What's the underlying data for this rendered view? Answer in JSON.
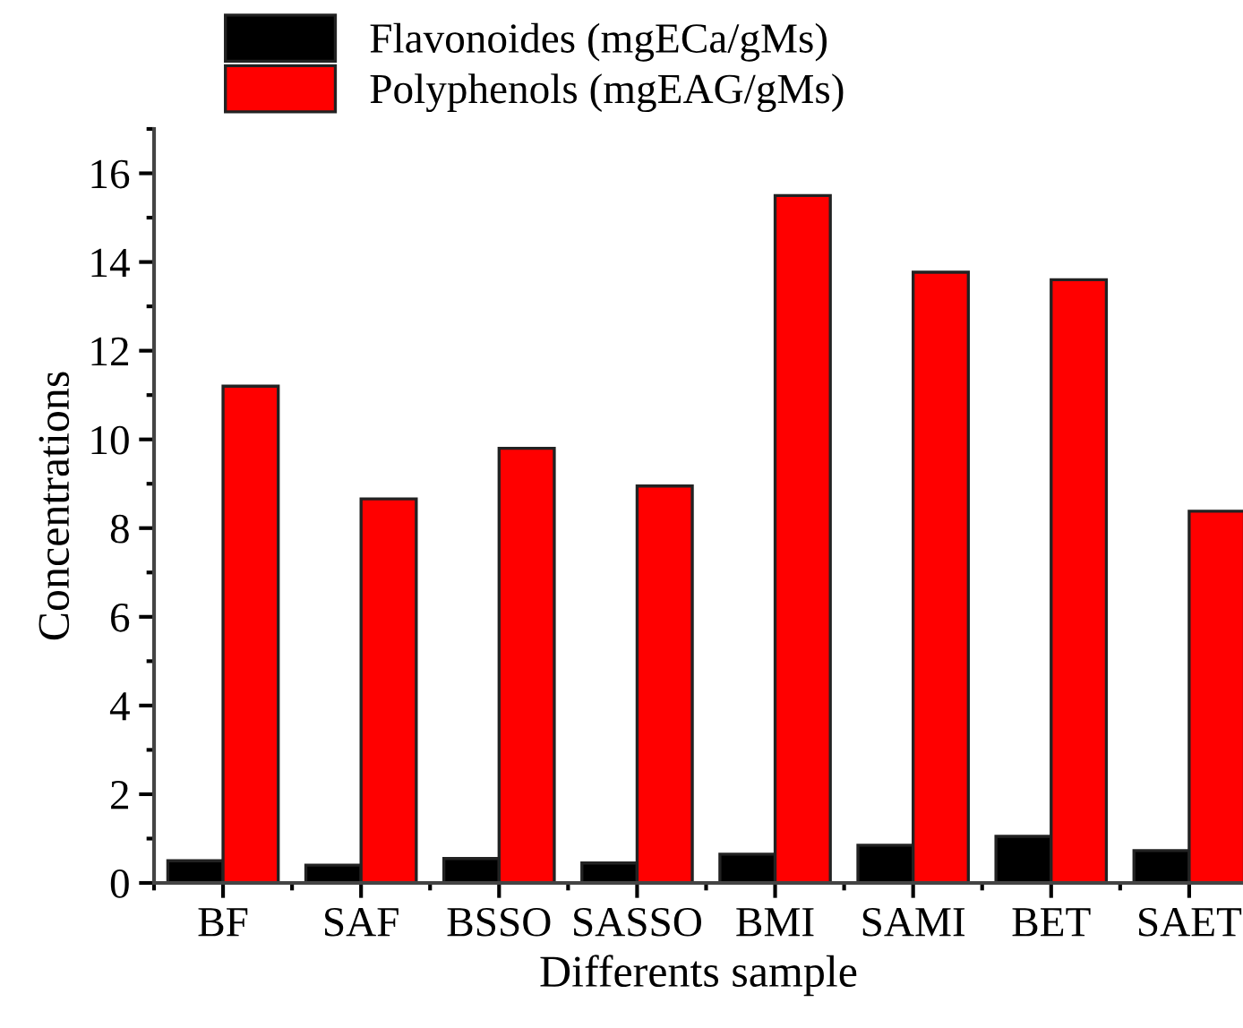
{
  "chart_data": {
    "type": "bar",
    "xlabel": "Differents sample",
    "ylabel": "Concentrations",
    "categories": [
      "BF",
      "SAF",
      "BSSO",
      "SASSO",
      "BMI",
      "SAMI",
      "BET",
      "SAET"
    ],
    "series": [
      {
        "name": "Flavonoides (mgECa/gMs)",
        "color": "#000000",
        "values": [
          0.5,
          0.4,
          0.55,
          0.45,
          0.65,
          0.85,
          1.05,
          0.73
        ]
      },
      {
        "name": "Polyphenols (mgEAG/gMs)",
        "color": "#ff0000",
        "values": [
          11.2,
          8.66,
          9.8,
          8.95,
          15.5,
          13.77,
          13.6,
          8.38
        ]
      }
    ],
    "ylim": [
      0,
      17
    ],
    "yticks": [
      0,
      2,
      4,
      6,
      8,
      10,
      12,
      14,
      16
    ],
    "grid": false,
    "legend": "top left"
  }
}
